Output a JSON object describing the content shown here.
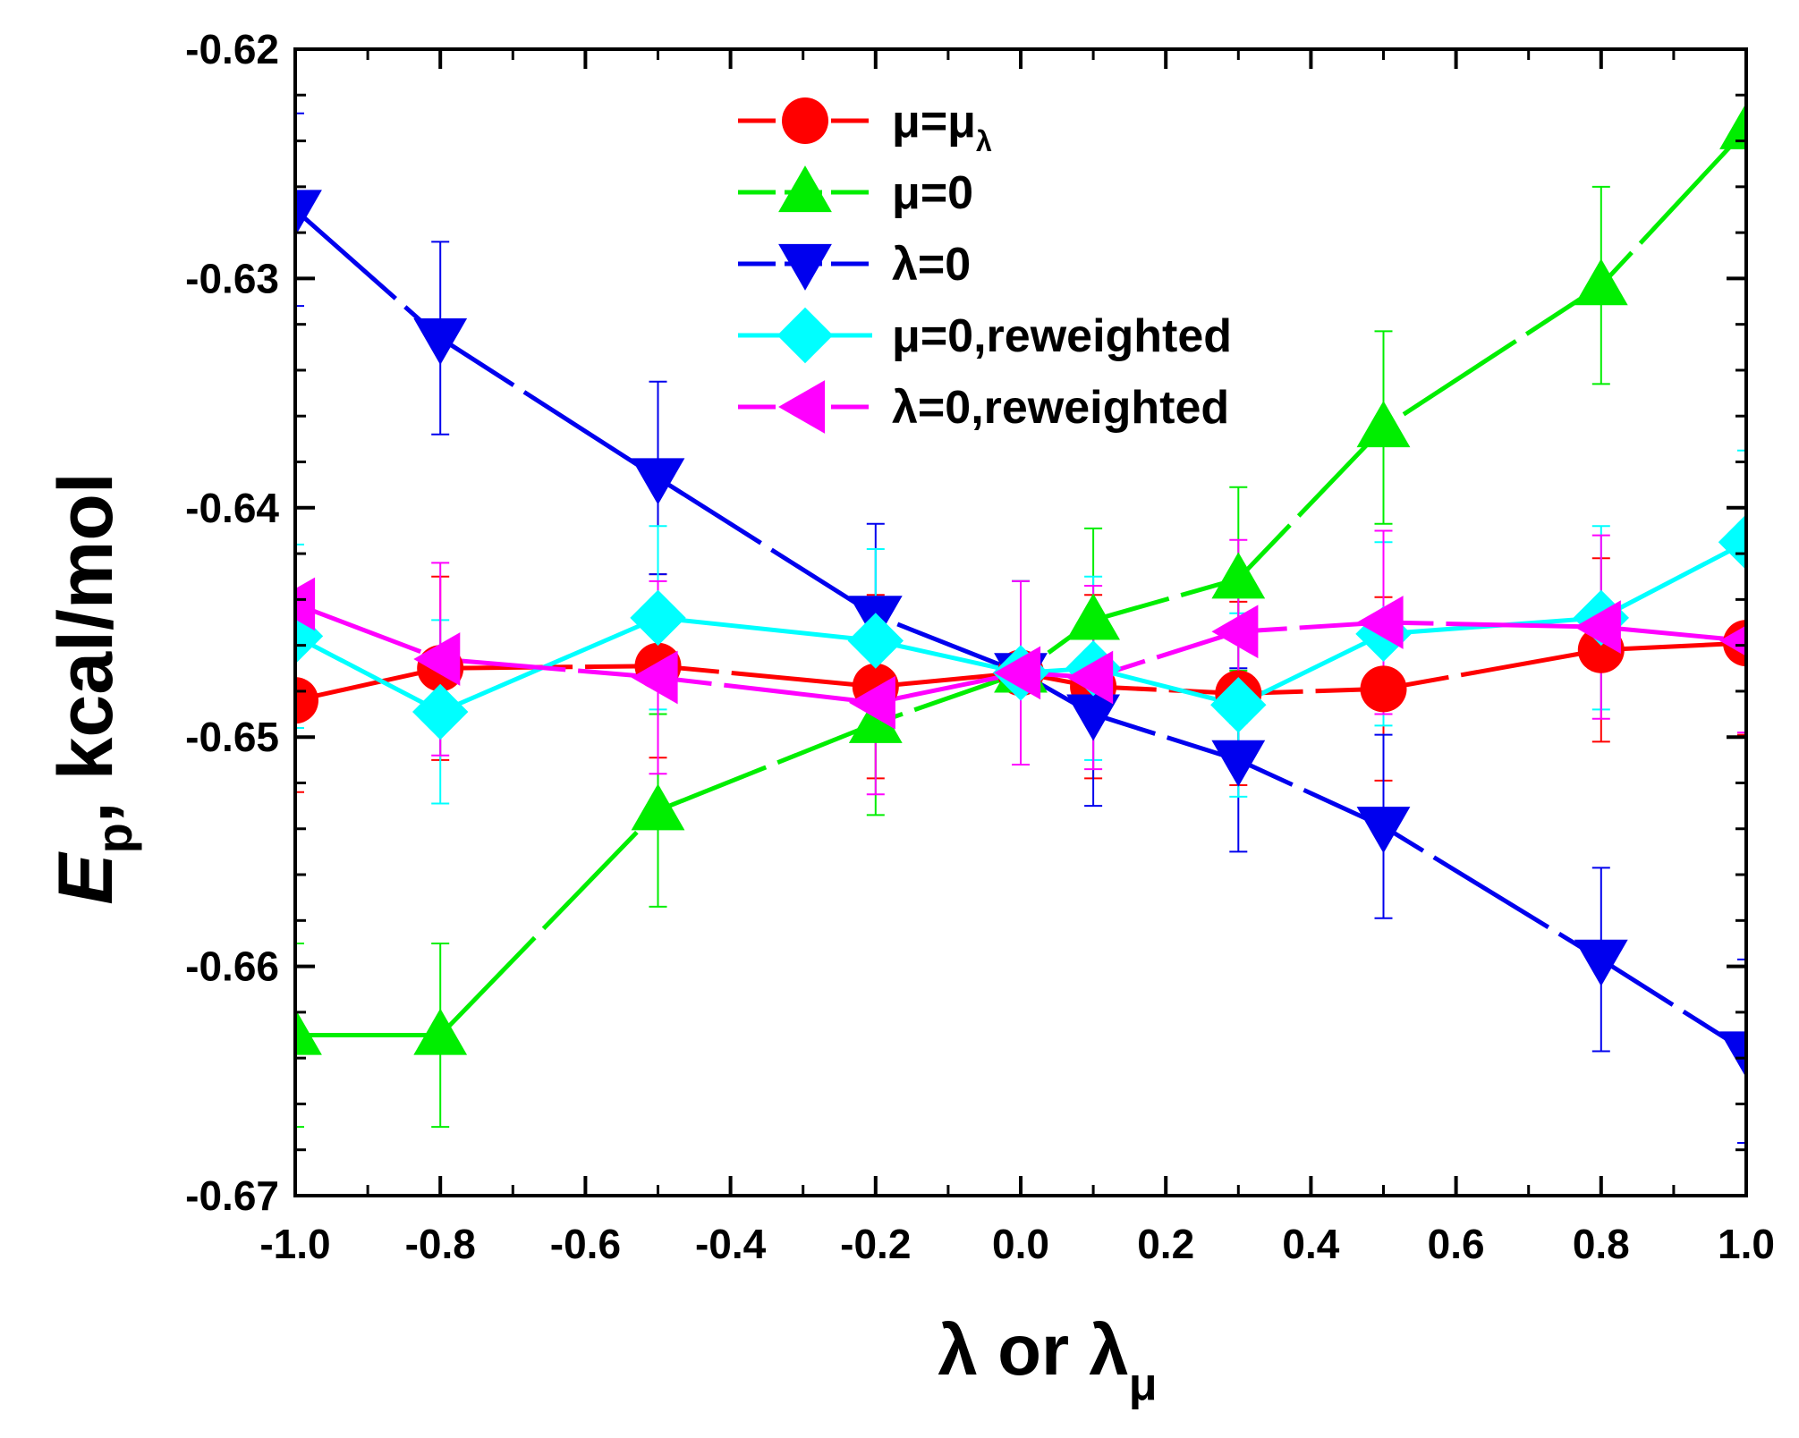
{
  "chart_data": {
    "type": "line",
    "x": [
      -1.0,
      -0.8,
      -0.5,
      -0.2,
      0.0,
      0.1,
      0.3,
      0.5,
      0.8,
      1.0
    ],
    "xlim": [
      -1.0,
      1.0
    ],
    "ylim": [
      -0.67,
      -0.62
    ],
    "xticks": [
      -1.0,
      -0.8,
      -0.6,
      -0.4,
      -0.2,
      0.0,
      0.2,
      0.4,
      0.6,
      0.8,
      1.0
    ],
    "yticks": [
      -0.62,
      -0.63,
      -0.64,
      -0.65,
      -0.66,
      -0.67
    ],
    "xtick_labels": [
      "-1.0",
      "-0.8",
      "-0.6",
      "-0.4",
      "-0.2",
      "0.0",
      "0.2",
      "0.4",
      "0.6",
      "0.8",
      "1.0"
    ],
    "ytick_labels": [
      "-0.62",
      "-0.63",
      "-0.64",
      "-0.65",
      "-0.66",
      "-0.67"
    ],
    "xlabel": {
      "main": "λ or λ",
      "sub": "μ"
    },
    "ylabel": {
      "italic": "E",
      "sub": "p",
      "rest": ", kcal/mol"
    },
    "legend_position": "top-center",
    "grid": false,
    "series": [
      {
        "name": "μ=μ",
        "name_sub": "λ",
        "color": "#ff0000",
        "marker": "circle",
        "dashed": true,
        "y": [
          -0.6484,
          -0.647,
          -0.6469,
          -0.6478,
          -0.6472,
          -0.6478,
          -0.6481,
          -0.6479,
          -0.6462,
          -0.6459
        ],
        "err": [
          0.004,
          0.004,
          0.004,
          0.004,
          0.004,
          0.004,
          0.004,
          0.004,
          0.004,
          0.004
        ]
      },
      {
        "name": "μ=0",
        "color": "#00ee00",
        "marker": "triangle-up",
        "dashed": true,
        "y": [
          -0.663,
          -0.663,
          -0.6532,
          -0.6494,
          -0.6472,
          -0.6449,
          -0.6431,
          -0.6365,
          -0.6303,
          -0.6235
        ],
        "err": [
          0.004,
          0.004,
          0.0042,
          0.004,
          0.004,
          0.004,
          0.004,
          0.0042,
          0.0043,
          0.0045
        ]
      },
      {
        "name": "λ=0",
        "color": "#0000ee",
        "marker": "triangle-down",
        "dashed": true,
        "y": [
          -0.627,
          -0.6326,
          -0.6387,
          -0.6447,
          -0.6472,
          -0.649,
          -0.651,
          -0.6539,
          -0.6597,
          -0.6637
        ],
        "err": [
          0.0042,
          0.0042,
          0.0042,
          0.004,
          0.004,
          0.004,
          0.004,
          0.004,
          0.004,
          0.004
        ]
      },
      {
        "name": "μ=0,reweighted",
        "color": "#00ffff",
        "marker": "diamond",
        "dashed": false,
        "y": [
          -0.6456,
          -0.6489,
          -0.6448,
          -0.6458,
          -0.6472,
          -0.647,
          -0.6486,
          -0.6455,
          -0.6448,
          -0.6415
        ],
        "err": [
          0.004,
          0.004,
          0.004,
          0.004,
          0.004,
          0.004,
          0.004,
          0.004,
          0.004,
          0.004
        ]
      },
      {
        "name": "λ=0,reweighted",
        "color": "#ff00ff",
        "marker": "triangle-left",
        "dashed": true,
        "y": [
          -0.6442,
          -0.6466,
          -0.6474,
          -0.6485,
          -0.6472,
          -0.6474,
          -0.6454,
          -0.645,
          -0.6452,
          -0.6458
        ],
        "err": [
          0.0042,
          0.0042,
          0.0042,
          0.004,
          0.004,
          0.004,
          0.004,
          0.004,
          0.004,
          0.004
        ]
      }
    ]
  }
}
